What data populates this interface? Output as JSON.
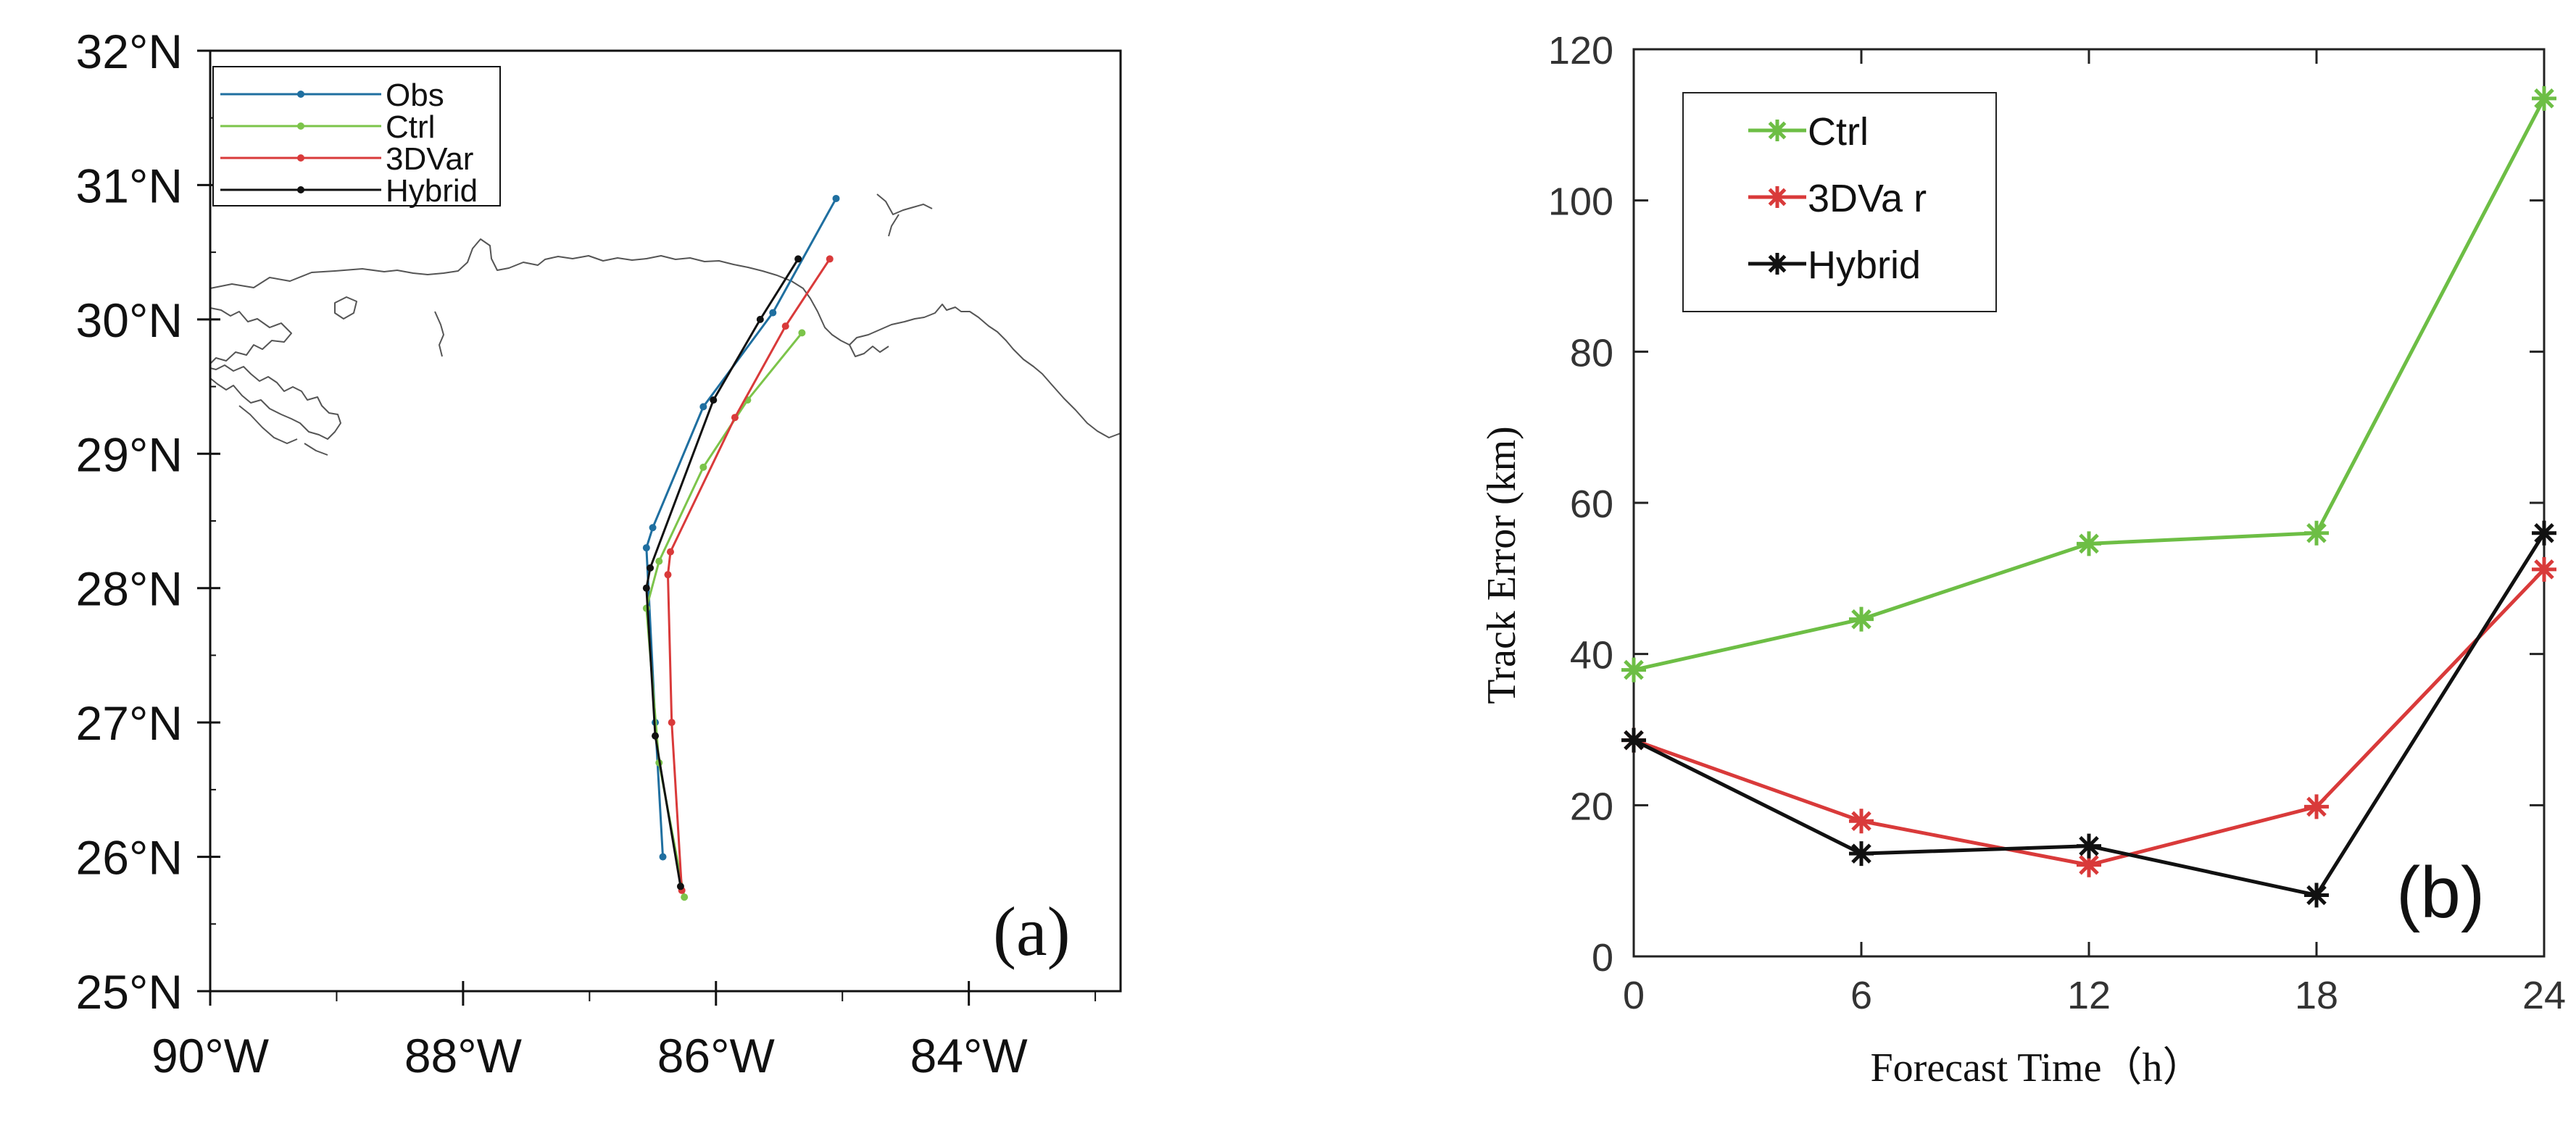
{
  "chart_data": [
    {
      "type": "line",
      "panel_label": "(a)",
      "title": "",
      "xlabel": "",
      "ylabel": "",
      "xlim": [
        -90,
        -82.8
      ],
      "ylim": [
        25,
        32
      ],
      "x_ticks": [
        -90,
        -88,
        -86,
        -84
      ],
      "x_tick_labels": [
        "90°W",
        "88°W",
        "86°W",
        "84°W"
      ],
      "y_ticks": [
        25,
        26,
        27,
        28,
        29,
        30,
        31,
        32
      ],
      "y_tick_labels": [
        "25°N",
        "26°N",
        "27°N",
        "28°N",
        "29°N",
        "30°N",
        "31°N",
        "32°N"
      ],
      "legend": "top-left",
      "series": [
        {
          "name": "Obs",
          "color": "#1f6fa0",
          "lon": [
            -86.42,
            -86.48,
            -86.55,
            -86.5,
            -86.1,
            -85.55,
            -85.05
          ],
          "lat": [
            26.0,
            27.0,
            28.3,
            28.45,
            29.35,
            30.05,
            30.9
          ]
        },
        {
          "name": "Ctrl",
          "color": "#7cc44a",
          "lon": [
            -86.25,
            -86.45,
            -86.55,
            -86.45,
            -86.1,
            -85.75,
            -85.32
          ],
          "lat": [
            25.7,
            26.7,
            27.85,
            28.2,
            28.9,
            29.4,
            29.9
          ]
        },
        {
          "name": "3DVar",
          "color": "#d93a3a",
          "lon": [
            -86.27,
            -86.35,
            -86.38,
            -86.36,
            -85.85,
            -85.45,
            -85.1
          ],
          "lat": [
            25.75,
            27.0,
            28.1,
            28.27,
            29.27,
            29.95,
            30.45
          ]
        },
        {
          "name": "Hybrid",
          "color": "#111111",
          "lon": [
            -86.28,
            -86.48,
            -86.55,
            -86.52,
            -86.02,
            -85.65,
            -85.35
          ],
          "lat": [
            25.78,
            26.9,
            28.0,
            28.15,
            29.4,
            30.0,
            30.45
          ]
        }
      ]
    },
    {
      "type": "line",
      "panel_label": "(b)",
      "title": "",
      "xlabel": "Forecast Time（h）",
      "ylabel": "Track  Error (km)",
      "xlim": [
        0,
        24
      ],
      "ylim": [
        0,
        120
      ],
      "x_ticks": [
        0,
        6,
        12,
        18,
        24
      ],
      "x_tick_labels": [
        "0",
        "6",
        "12",
        "18",
        "24"
      ],
      "y_ticks": [
        0,
        20,
        40,
        60,
        80,
        100,
        120
      ],
      "y_tick_labels": [
        "0",
        "20",
        "40",
        "60",
        "80",
        "100",
        "120"
      ],
      "legend": "top-left",
      "x": [
        0,
        6,
        12,
        18,
        24
      ],
      "series": [
        {
          "name": "Ctrl",
          "color": "#6dbe45",
          "values": [
            37.9,
            44.6,
            54.6,
            56.0,
            113.5
          ]
        },
        {
          "name": "3DVa r",
          "color": "#d93a3a",
          "values": [
            28.6,
            17.9,
            12.1,
            19.8,
            51.2
          ]
        },
        {
          "name": "Hybrid",
          "color": "#111111",
          "values": [
            28.6,
            13.6,
            14.6,
            8.1,
            56.0
          ]
        }
      ]
    }
  ]
}
